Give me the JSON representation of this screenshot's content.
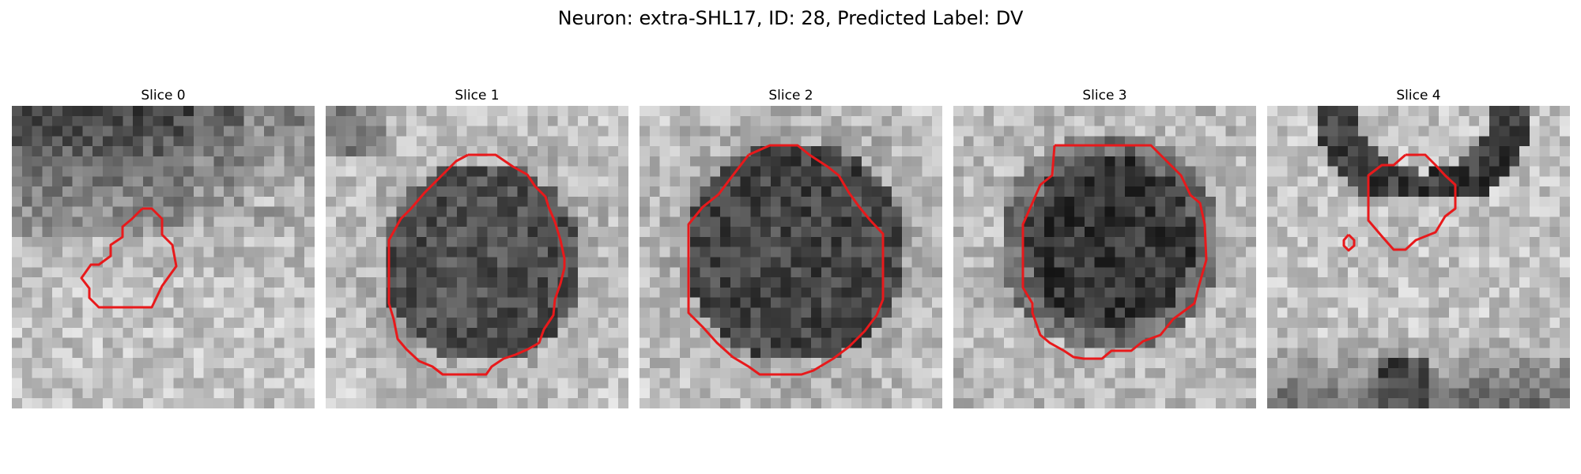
{
  "figure": {
    "title": "Neuron: extra-SHL17, ID: 28, Predicted Label: DV"
  },
  "contour_color": "#e8191b",
  "panels": [
    {
      "title": "Slice 0",
      "description": "grayscale microscopy crop with small red contour",
      "dark_region": "upper-left band"
    },
    {
      "title": "Slice 1",
      "description": "grayscale microscopy crop with large red contour",
      "dark_region": "center blob"
    },
    {
      "title": "Slice 2",
      "description": "grayscale microscopy crop with large red contour",
      "dark_region": "center blob"
    },
    {
      "title": "Slice 3",
      "description": "grayscale microscopy crop with red contour",
      "dark_region": "center blob"
    },
    {
      "title": "Slice 4",
      "description": "grayscale microscopy crop with small red contours",
      "dark_region": "top arc and lower-right band"
    }
  ]
}
